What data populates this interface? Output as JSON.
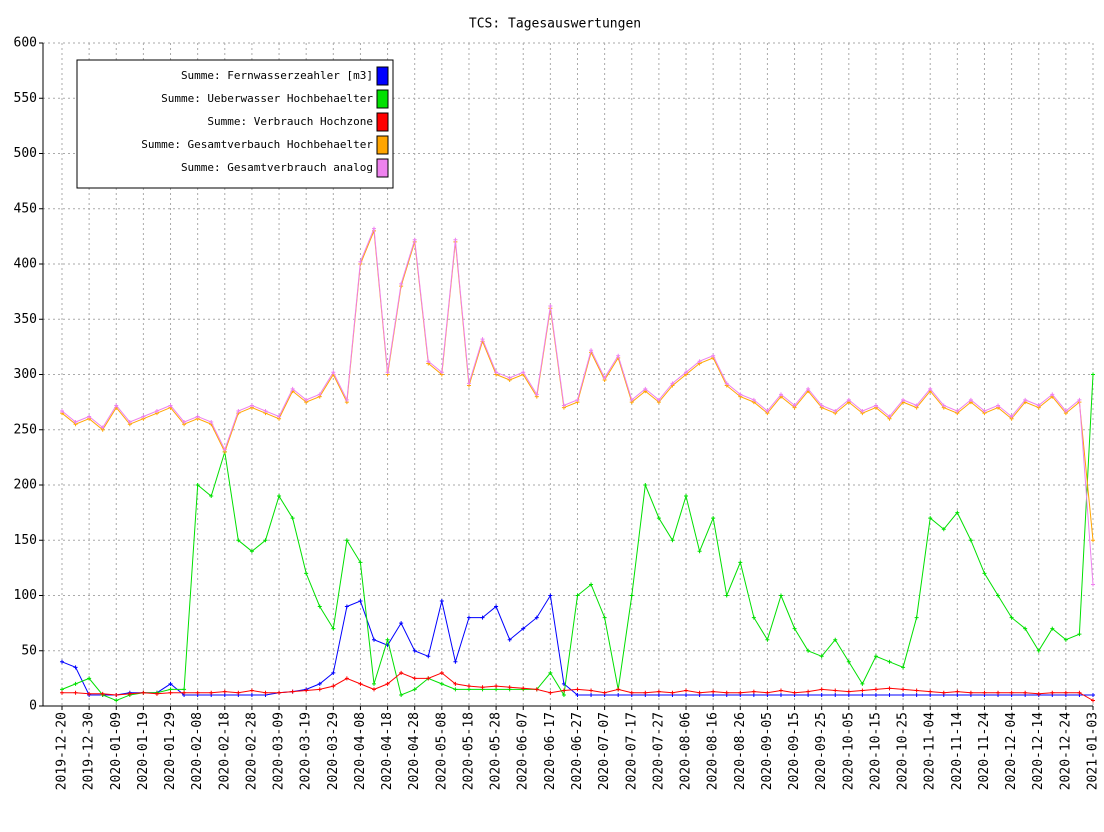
{
  "chart_data": {
    "type": "line",
    "title": "TCS: Tagesauswertungen",
    "x": [
      "2019-12-20",
      "2019-12-25",
      "2019-12-30",
      "2020-01-04",
      "2020-01-09",
      "2020-01-14",
      "2020-01-19",
      "2020-01-24",
      "2020-01-29",
      "2020-02-03",
      "2020-02-08",
      "2020-02-13",
      "2020-02-18",
      "2020-02-23",
      "2020-02-28",
      "2020-03-04",
      "2020-03-09",
      "2020-03-14",
      "2020-03-19",
      "2020-03-24",
      "2020-03-29",
      "2020-04-03",
      "2020-04-08",
      "2020-04-13",
      "2020-04-18",
      "2020-04-23",
      "2020-04-28",
      "2020-05-03",
      "2020-05-08",
      "2020-05-13",
      "2020-05-18",
      "2020-05-23",
      "2020-05-28",
      "2020-06-02",
      "2020-06-07",
      "2020-06-12",
      "2020-06-17",
      "2020-06-22",
      "2020-06-27",
      "2020-07-02",
      "2020-07-07",
      "2020-07-12",
      "2020-07-17",
      "2020-07-22",
      "2020-07-27",
      "2020-08-01",
      "2020-08-06",
      "2020-08-11",
      "2020-08-16",
      "2020-08-21",
      "2020-08-26",
      "2020-08-31",
      "2020-09-05",
      "2020-09-10",
      "2020-09-15",
      "2020-09-20",
      "2020-09-25",
      "2020-09-30",
      "2020-10-05",
      "2020-10-10",
      "2020-10-15",
      "2020-10-20",
      "2020-10-25",
      "2020-10-30",
      "2020-11-04",
      "2020-11-09",
      "2020-11-14",
      "2020-11-19",
      "2020-11-24",
      "2020-11-29",
      "2020-12-04",
      "2020-12-09",
      "2020-12-14",
      "2020-12-19",
      "2020-12-24",
      "2020-12-29",
      "2021-01-03"
    ],
    "series": [
      {
        "name": "Summe: Fernwasserzeahler [m3]",
        "color": "#0000ff",
        "values": [
          40,
          35,
          10,
          10,
          10,
          12,
          12,
          12,
          20,
          10,
          10,
          10,
          10,
          10,
          10,
          10,
          12,
          13,
          15,
          20,
          30,
          90,
          95,
          60,
          55,
          75,
          50,
          45,
          95,
          40,
          80,
          80,
          90,
          60,
          70,
          80,
          100,
          20,
          10,
          10,
          10,
          10,
          10,
          10,
          10,
          10,
          10,
          10,
          10,
          10,
          10,
          10,
          10,
          10,
          10,
          10,
          10,
          10,
          10,
          10,
          10,
          10,
          10,
          10,
          10,
          10,
          10,
          10,
          10,
          10,
          10,
          10,
          10,
          10,
          10,
          10,
          10
        ]
      },
      {
        "name": "Summe: Ueberwasser Hochbehaelter",
        "color": "#00e000",
        "values": [
          15,
          20,
          25,
          10,
          5,
          10,
          12,
          12,
          15,
          15,
          200,
          190,
          230,
          150,
          140,
          150,
          190,
          170,
          120,
          90,
          70,
          150,
          130,
          20,
          60,
          10,
          15,
          25,
          20,
          15,
          15,
          15,
          15,
          15,
          15,
          15,
          30,
          10,
          100,
          110,
          80,
          15,
          100,
          200,
          170,
          150,
          190,
          140,
          170,
          100,
          130,
          80,
          60,
          100,
          70,
          50,
          45,
          60,
          40,
          20,
          45,
          40,
          35,
          80,
          170,
          160,
          175,
          150,
          120,
          100,
          80,
          70,
          50,
          70,
          60,
          65,
          300
        ]
      },
      {
        "name": "Summe: Verbrauch Hochzone",
        "color": "#ff0000",
        "values": [
          12,
          12,
          11,
          11,
          10,
          11,
          12,
          11,
          12,
          12,
          12,
          12,
          13,
          12,
          14,
          12,
          12,
          13,
          14,
          15,
          18,
          25,
          20,
          15,
          20,
          30,
          25,
          25,
          30,
          20,
          18,
          17,
          18,
          17,
          16,
          15,
          12,
          14,
          15,
          14,
          12,
          15,
          12,
          12,
          13,
          12,
          14,
          12,
          13,
          12,
          12,
          13,
          12,
          14,
          12,
          13,
          15,
          14,
          13,
          14,
          15,
          16,
          15,
          14,
          13,
          12,
          13,
          12,
          12,
          12,
          12,
          12,
          11,
          12,
          12,
          12,
          5
        ]
      },
      {
        "name": "Summe: Gesamtverbauch Hochbehaelter",
        "color": "#ffa500",
        "values": [
          265,
          255,
          260,
          250,
          270,
          255,
          260,
          265,
          270,
          255,
          260,
          255,
          230,
          265,
          270,
          265,
          260,
          285,
          275,
          280,
          300,
          275,
          400,
          430,
          300,
          380,
          420,
          310,
          300,
          420,
          290,
          330,
          300,
          295,
          300,
          280,
          360,
          270,
          275,
          320,
          295,
          315,
          275,
          285,
          275,
          290,
          300,
          310,
          315,
          290,
          280,
          275,
          265,
          280,
          270,
          285,
          270,
          265,
          275,
          265,
          270,
          260,
          275,
          270,
          285,
          270,
          265,
          275,
          265,
          270,
          260,
          275,
          270,
          280,
          265,
          275,
          150
        ]
      },
      {
        "name": "Summe: Gesamtverbrauch analog",
        "color": "#ee82ee",
        "values": [
          267,
          257,
          262,
          252,
          272,
          257,
          262,
          267,
          272,
          257,
          262,
          257,
          232,
          267,
          272,
          267,
          262,
          287,
          277,
          282,
          302,
          277,
          402,
          432,
          302,
          382,
          422,
          312,
          302,
          422,
          292,
          332,
          302,
          297,
          302,
          282,
          362,
          272,
          277,
          322,
          297,
          317,
          277,
          287,
          277,
          292,
          302,
          312,
          317,
          292,
          282,
          277,
          267,
          282,
          272,
          287,
          272,
          267,
          277,
          267,
          272,
          262,
          277,
          272,
          287,
          272,
          267,
          277,
          267,
          272,
          262,
          277,
          272,
          282,
          267,
          277,
          110
        ]
      }
    ],
    "xlim": [
      "2019-12-13",
      "2021-01-03"
    ],
    "xticks": [
      "2019-12-20",
      "2019-12-30",
      "2020-01-09",
      "2020-01-19",
      "2020-01-29",
      "2020-02-08",
      "2020-02-18",
      "2020-02-28",
      "2020-03-09",
      "2020-03-19",
      "2020-03-29",
      "2020-04-08",
      "2020-04-18",
      "2020-04-28",
      "2020-05-08",
      "2020-05-18",
      "2020-05-28",
      "2020-06-07",
      "2020-06-17",
      "2020-06-27",
      "2020-07-07",
      "2020-07-17",
      "2020-07-27",
      "2020-08-06",
      "2020-08-16",
      "2020-08-26",
      "2020-09-05",
      "2020-09-15",
      "2020-09-25",
      "2020-10-05",
      "2020-10-15",
      "2020-10-25",
      "2020-11-04",
      "2020-11-14",
      "2020-11-24",
      "2020-12-04",
      "2020-12-14",
      "2020-12-24",
      "2021-01-03"
    ],
    "ylim": [
      0,
      600
    ],
    "yticks": [
      0,
      50,
      100,
      150,
      200,
      250,
      300,
      350,
      400,
      450,
      500,
      550,
      600
    ],
    "grid": true,
    "legend": "top-left"
  }
}
